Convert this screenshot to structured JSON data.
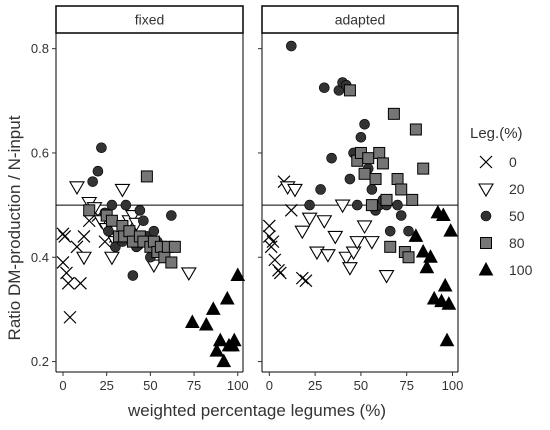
{
  "chart_data": {
    "type": "scatter",
    "xlabel": "weighted percentage legumes (%)",
    "ylabel": "Ratio DM-production / N-input",
    "x_ticks": [
      0,
      25,
      50,
      75,
      100
    ],
    "y_ticks": [
      0.2,
      0.4,
      0.6,
      0.8
    ],
    "xlim": [
      -4,
      103
    ],
    "ylim": [
      0.18,
      0.83
    ],
    "reference_line_y": 0.5,
    "grid": false,
    "legend": {
      "title": "Leg.(%)",
      "position": "right",
      "entries": [
        {
          "label": "0",
          "shape": "cross"
        },
        {
          "label": "20",
          "shape": "triangle-down-open"
        },
        {
          "label": "50",
          "shape": "circle"
        },
        {
          "label": "80",
          "shape": "square"
        },
        {
          "label": "100",
          "shape": "triangle-up"
        }
      ]
    },
    "panels": [
      {
        "title": "fixed",
        "series": [
          {
            "legend": "0",
            "points": [
              [
                0,
                0.445
              ],
              [
                1,
                0.44
              ],
              [
                0,
                0.39
              ],
              [
                2,
                0.37
              ],
              [
                3,
                0.35
              ],
              [
                4,
                0.285
              ],
              [
                8,
                0.42
              ],
              [
                10,
                0.35
              ],
              [
                12,
                0.44
              ],
              [
                15,
                0.47
              ],
              [
                20,
                0.48
              ],
              [
                24,
                0.43
              ],
              [
                30,
                0.44
              ]
            ]
          },
          {
            "legend": "20",
            "points": [
              [
                8,
                0.535
              ],
              [
                12,
                0.4
              ],
              [
                15,
                0.505
              ],
              [
                18,
                0.495
              ],
              [
                22,
                0.47
              ],
              [
                25,
                0.455
              ],
              [
                28,
                0.4
              ],
              [
                30,
                0.43
              ],
              [
                34,
                0.53
              ],
              [
                38,
                0.47
              ],
              [
                40,
                0.48
              ],
              [
                42,
                0.465
              ],
              [
                45,
                0.43
              ],
              [
                50,
                0.42
              ],
              [
                52,
                0.385
              ],
              [
                60,
                0.415
              ],
              [
                72,
                0.37
              ]
            ]
          },
          {
            "legend": "50",
            "points": [
              [
                17,
                0.545
              ],
              [
                20,
                0.565
              ],
              [
                22,
                0.61
              ],
              [
                24,
                0.485
              ],
              [
                26,
                0.45
              ],
              [
                28,
                0.5
              ],
              [
                30,
                0.42
              ],
              [
                32,
                0.44
              ],
              [
                34,
                0.43
              ],
              [
                36,
                0.5
              ],
              [
                38,
                0.45
              ],
              [
                40,
                0.365
              ],
              [
                42,
                0.42
              ],
              [
                44,
                0.49
              ],
              [
                46,
                0.47
              ],
              [
                48,
                0.44
              ],
              [
                50,
                0.4
              ],
              [
                52,
                0.45
              ],
              [
                54,
                0.43
              ],
              [
                56,
                0.41
              ],
              [
                62,
                0.48
              ]
            ]
          },
          {
            "legend": "80",
            "points": [
              [
                15,
                0.49
              ],
              [
                25,
                0.48
              ],
              [
                28,
                0.47
              ],
              [
                32,
                0.44
              ],
              [
                34,
                0.46
              ],
              [
                35,
                0.44
              ],
              [
                38,
                0.45
              ],
              [
                40,
                0.43
              ],
              [
                44,
                0.44
              ],
              [
                46,
                0.43
              ],
              [
                48,
                0.555
              ],
              [
                50,
                0.42
              ],
              [
                52,
                0.43
              ],
              [
                54,
                0.41
              ],
              [
                56,
                0.42
              ],
              [
                58,
                0.4
              ],
              [
                60,
                0.42
              ],
              [
                62,
                0.39
              ],
              [
                64,
                0.42
              ]
            ]
          },
          {
            "legend": "100",
            "points": [
              [
                74,
                0.275
              ],
              [
                82,
                0.27
              ],
              [
                86,
                0.3
              ],
              [
                88,
                0.22
              ],
              [
                90,
                0.24
              ],
              [
                92,
                0.2
              ],
              [
                94,
                0.32
              ],
              [
                95,
                0.23
              ],
              [
                97,
                0.23
              ],
              [
                98,
                0.24
              ],
              [
                100,
                0.365
              ]
            ]
          }
        ]
      },
      {
        "title": "adapted",
        "series": [
          {
            "legend": "0",
            "points": [
              [
                0,
                0.46
              ],
              [
                0,
                0.44
              ],
              [
                1,
                0.42
              ],
              [
                2,
                0.43
              ],
              [
                3,
                0.395
              ],
              [
                5,
                0.375
              ],
              [
                6,
                0.37
              ],
              [
                8,
                0.545
              ],
              [
                12,
                0.49
              ],
              [
                18,
                0.36
              ],
              [
                20,
                0.355
              ]
            ]
          },
          {
            "legend": "20",
            "points": [
              [
                10,
                0.535
              ],
              [
                14,
                0.53
              ],
              [
                18,
                0.45
              ],
              [
                22,
                0.475
              ],
              [
                26,
                0.41
              ],
              [
                30,
                0.47
              ],
              [
                32,
                0.405
              ],
              [
                36,
                0.44
              ],
              [
                40,
                0.5
              ],
              [
                42,
                0.4
              ],
              [
                44,
                0.38
              ],
              [
                46,
                0.41
              ],
              [
                48,
                0.43
              ],
              [
                52,
                0.46
              ],
              [
                56,
                0.43
              ],
              [
                64,
                0.365
              ]
            ]
          },
          {
            "legend": "50",
            "points": [
              [
                12,
                0.805
              ],
              [
                22,
                0.5
              ],
              [
                28,
                0.53
              ],
              [
                30,
                0.725
              ],
              [
                34,
                0.59
              ],
              [
                38,
                0.72
              ],
              [
                40,
                0.735
              ],
              [
                42,
                0.73
              ],
              [
                44,
                0.55
              ],
              [
                46,
                0.6
              ],
              [
                48,
                0.5
              ],
              [
                50,
                0.63
              ],
              [
                52,
                0.655
              ],
              [
                54,
                0.57
              ],
              [
                56,
                0.53
              ],
              [
                58,
                0.49
              ],
              [
                60,
                0.5
              ],
              [
                62,
                0.51
              ],
              [
                64,
                0.5
              ],
              [
                66,
                0.45
              ],
              [
                70,
                0.5
              ],
              [
                72,
                0.48
              ],
              [
                76,
                0.45
              ]
            ]
          },
          {
            "legend": "80",
            "points": [
              [
                44,
                0.72
              ],
              [
                48,
                0.585
              ],
              [
                50,
                0.6
              ],
              [
                52,
                0.56
              ],
              [
                54,
                0.59
              ],
              [
                56,
                0.5
              ],
              [
                58,
                0.55
              ],
              [
                60,
                0.6
              ],
              [
                62,
                0.58
              ],
              [
                64,
                0.51
              ],
              [
                66,
                0.42
              ],
              [
                68,
                0.675
              ],
              [
                70,
                0.55
              ],
              [
                72,
                0.53
              ],
              [
                74,
                0.41
              ],
              [
                76,
                0.4
              ],
              [
                78,
                0.51
              ],
              [
                80,
                0.645
              ],
              [
                84,
                0.57
              ]
            ]
          },
          {
            "legend": "100",
            "points": [
              [
                80,
                0.44
              ],
              [
                84,
                0.41
              ],
              [
                86,
                0.38
              ],
              [
                88,
                0.4
              ],
              [
                90,
                0.32
              ],
              [
                92,
                0.485
              ],
              [
                94,
                0.315
              ],
              [
                95,
                0.48
              ],
              [
                96,
                0.345
              ],
              [
                97,
                0.24
              ],
              [
                98,
                0.31
              ],
              [
                99,
                0.45
              ]
            ]
          }
        ]
      }
    ]
  }
}
